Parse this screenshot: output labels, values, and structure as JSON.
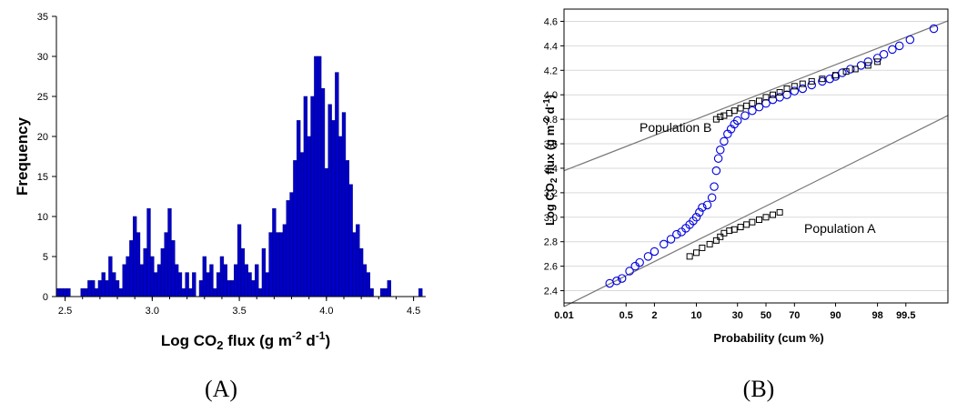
{
  "panel_labels": [
    "(A)",
    "(B)"
  ],
  "colors": {
    "bar": "#0000c8",
    "bar_edge": "#00007a",
    "blue_marker": "#0000e0",
    "black_marker": "#000000",
    "fit_line": "#777777",
    "grid": "#d9d9d9"
  },
  "chart_data": [
    {
      "type": "bar",
      "panel": "(A)",
      "xlabel": {
        "prefix": "Log CO",
        "sub": "2",
        "mid": " flux (g m",
        "sup1": "-2",
        "mid2": " d",
        "sup2": "-1",
        "suffix": ")"
      },
      "ylabel": "Frequency",
      "xlim": [
        2.45,
        4.57
      ],
      "ylim": [
        0,
        35
      ],
      "bin_width": 0.02,
      "xticks": [
        2.5,
        3.0,
        3.5,
        4.0,
        4.5
      ],
      "xtick_labels": [
        "2.5",
        "3.0",
        "3.5",
        "4.0",
        "4.5"
      ],
      "yticks": [
        0,
        5,
        10,
        15,
        20,
        25,
        30,
        35
      ],
      "grid": false,
      "bins": [
        [
          2.46,
          1
        ],
        [
          2.48,
          1
        ],
        [
          2.5,
          1
        ],
        [
          2.52,
          1
        ],
        [
          2.6,
          1
        ],
        [
          2.62,
          1
        ],
        [
          2.64,
          2
        ],
        [
          2.66,
          2
        ],
        [
          2.68,
          1
        ],
        [
          2.7,
          2
        ],
        [
          2.72,
          3
        ],
        [
          2.74,
          2
        ],
        [
          2.76,
          5
        ],
        [
          2.78,
          3
        ],
        [
          2.8,
          2
        ],
        [
          2.82,
          1
        ],
        [
          2.84,
          4
        ],
        [
          2.86,
          5
        ],
        [
          2.88,
          7
        ],
        [
          2.9,
          10
        ],
        [
          2.92,
          8
        ],
        [
          2.94,
          4
        ],
        [
          2.96,
          6
        ],
        [
          2.98,
          11
        ],
        [
          3.0,
          5
        ],
        [
          3.02,
          3
        ],
        [
          3.04,
          4
        ],
        [
          3.06,
          6
        ],
        [
          3.08,
          8
        ],
        [
          3.1,
          11
        ],
        [
          3.12,
          7
        ],
        [
          3.14,
          4
        ],
        [
          3.16,
          3
        ],
        [
          3.18,
          1
        ],
        [
          3.2,
          3
        ],
        [
          3.22,
          1
        ],
        [
          3.24,
          3
        ],
        [
          3.28,
          2
        ],
        [
          3.3,
          5
        ],
        [
          3.32,
          3
        ],
        [
          3.34,
          4
        ],
        [
          3.36,
          1
        ],
        [
          3.38,
          3
        ],
        [
          3.4,
          5
        ],
        [
          3.42,
          4
        ],
        [
          3.44,
          2
        ],
        [
          3.46,
          2
        ],
        [
          3.48,
          4
        ],
        [
          3.5,
          9
        ],
        [
          3.52,
          6
        ],
        [
          3.54,
          4
        ],
        [
          3.56,
          3
        ],
        [
          3.58,
          2
        ],
        [
          3.6,
          4
        ],
        [
          3.62,
          1
        ],
        [
          3.64,
          6
        ],
        [
          3.66,
          3
        ],
        [
          3.68,
          8
        ],
        [
          3.7,
          11
        ],
        [
          3.72,
          8
        ],
        [
          3.74,
          8
        ],
        [
          3.76,
          9
        ],
        [
          3.78,
          12
        ],
        [
          3.8,
          13
        ],
        [
          3.82,
          17
        ],
        [
          3.84,
          22
        ],
        [
          3.86,
          18
        ],
        [
          3.88,
          25
        ],
        [
          3.9,
          20
        ],
        [
          3.92,
          25
        ],
        [
          3.94,
          30
        ],
        [
          3.96,
          30
        ],
        [
          3.98,
          26
        ],
        [
          4.0,
          16
        ],
        [
          4.02,
          24
        ],
        [
          4.04,
          22
        ],
        [
          4.06,
          28
        ],
        [
          4.08,
          20
        ],
        [
          4.1,
          23
        ],
        [
          4.12,
          17
        ],
        [
          4.14,
          14
        ],
        [
          4.16,
          8
        ],
        [
          4.18,
          9
        ],
        [
          4.2,
          6
        ],
        [
          4.22,
          4
        ],
        [
          4.24,
          3
        ],
        [
          4.26,
          1
        ],
        [
          4.32,
          1
        ],
        [
          4.34,
          1
        ],
        [
          4.36,
          2
        ],
        [
          4.54,
          1
        ]
      ]
    },
    {
      "type": "scatter",
      "panel": "(B)",
      "xlabel": "Probability (cum %)",
      "ylabel": {
        "prefix": "Log CO",
        "sub": "2",
        "mid": " flux (g m",
        "sup1": "-2",
        "mid2": " d",
        "sup2": "-1",
        "suffix": ")"
      },
      "xscale": "probability",
      "xticks": [
        0.01,
        0.5,
        2,
        10,
        30,
        50,
        70,
        90,
        98,
        99.5
      ],
      "xtick_labels": [
        "0.01",
        "0.5",
        "2",
        "10",
        "30",
        "50",
        "70",
        "90",
        "98",
        "99.5"
      ],
      "ylim": [
        2.3,
        4.7
      ],
      "yticks": [
        2.4,
        2.6,
        2.8,
        3.0,
        3.2,
        3.4,
        3.6,
        3.8,
        4.0,
        4.2,
        4.4,
        4.6
      ],
      "ytick_labels": [
        "2.4",
        "2.6",
        "2.8",
        "3.0",
        "3.2",
        "3.4",
        "3.6",
        "3.8",
        "4.0",
        "4.2",
        "4.4",
        "4.6"
      ],
      "grid": true,
      "annotations": [
        "Population B",
        "Population A"
      ],
      "series": [
        {
          "marker": "circle-open",
          "points": [
            [
              0.2,
              2.46
            ],
            [
              0.3,
              2.48
            ],
            [
              0.4,
              2.5
            ],
            [
              0.6,
              2.56
            ],
            [
              0.8,
              2.6
            ],
            [
              1,
              2.63
            ],
            [
              1.5,
              2.68
            ],
            [
              2,
              2.72
            ],
            [
              3,
              2.78
            ],
            [
              4,
              2.82
            ],
            [
              5,
              2.86
            ],
            [
              6,
              2.88
            ],
            [
              7,
              2.91
            ],
            [
              8,
              2.94
            ],
            [
              9,
              2.97
            ],
            [
              10,
              3.0
            ],
            [
              11,
              3.04
            ],
            [
              12,
              3.08
            ],
            [
              14,
              3.1
            ],
            [
              16,
              3.16
            ],
            [
              17,
              3.25
            ],
            [
              18,
              3.38
            ],
            [
              19,
              3.48
            ],
            [
              20,
              3.55
            ],
            [
              22,
              3.62
            ],
            [
              24,
              3.68
            ],
            [
              26,
              3.72
            ],
            [
              28,
              3.76
            ],
            [
              30,
              3.79
            ],
            [
              35,
              3.83
            ],
            [
              40,
              3.87
            ],
            [
              45,
              3.9
            ],
            [
              50,
              3.93
            ],
            [
              55,
              3.96
            ],
            [
              60,
              3.98
            ],
            [
              65,
              4.0
            ],
            [
              70,
              4.03
            ],
            [
              75,
              4.05
            ],
            [
              80,
              4.08
            ],
            [
              85,
              4.11
            ],
            [
              88,
              4.13
            ],
            [
              90,
              4.15
            ],
            [
              92,
              4.18
            ],
            [
              94,
              4.21
            ],
            [
              96,
              4.24
            ],
            [
              97,
              4.27
            ],
            [
              98,
              4.3
            ],
            [
              98.5,
              4.33
            ],
            [
              99,
              4.37
            ],
            [
              99.3,
              4.4
            ],
            [
              99.6,
              4.45
            ],
            [
              99.9,
              4.54
            ]
          ]
        },
        {
          "name": "Population B",
          "marker": "square-open",
          "points": [
            [
              18,
              3.8
            ],
            [
              20,
              3.82
            ],
            [
              22,
              3.83
            ],
            [
              25,
              3.85
            ],
            [
              28,
              3.87
            ],
            [
              32,
              3.89
            ],
            [
              36,
              3.91
            ],
            [
              40,
              3.93
            ],
            [
              45,
              3.95
            ],
            [
              50,
              3.98
            ],
            [
              55,
              4.0
            ],
            [
              60,
              4.02
            ],
            [
              65,
              4.05
            ],
            [
              70,
              4.07
            ],
            [
              75,
              4.09
            ],
            [
              80,
              4.11
            ],
            [
              85,
              4.13
            ],
            [
              90,
              4.16
            ],
            [
              93,
              4.19
            ],
            [
              95,
              4.21
            ],
            [
              97,
              4.24
            ],
            [
              98,
              4.27
            ]
          ]
        },
        {
          "name": "Population A",
          "marker": "square-open",
          "points": [
            [
              8,
              2.68
            ],
            [
              10,
              2.71
            ],
            [
              12,
              2.75
            ],
            [
              15,
              2.78
            ],
            [
              18,
              2.81
            ],
            [
              20,
              2.84
            ],
            [
              22,
              2.87
            ],
            [
              25,
              2.89
            ],
            [
              28,
              2.9
            ],
            [
              32,
              2.92
            ],
            [
              36,
              2.94
            ],
            [
              40,
              2.96
            ],
            [
              45,
              2.98
            ],
            [
              50,
              3.0
            ],
            [
              55,
              3.02
            ],
            [
              60,
              3.04
            ]
          ]
        }
      ],
      "fit_lines": [
        {
          "name": "Population B",
          "points": [
            [
              0.01,
              3.38
            ],
            [
              99.5,
              4.47
            ]
          ]
        },
        {
          "name": "Population A",
          "points": [
            [
              0.01,
              2.27
            ],
            [
              99.5,
              3.66
            ]
          ]
        }
      ]
    }
  ]
}
